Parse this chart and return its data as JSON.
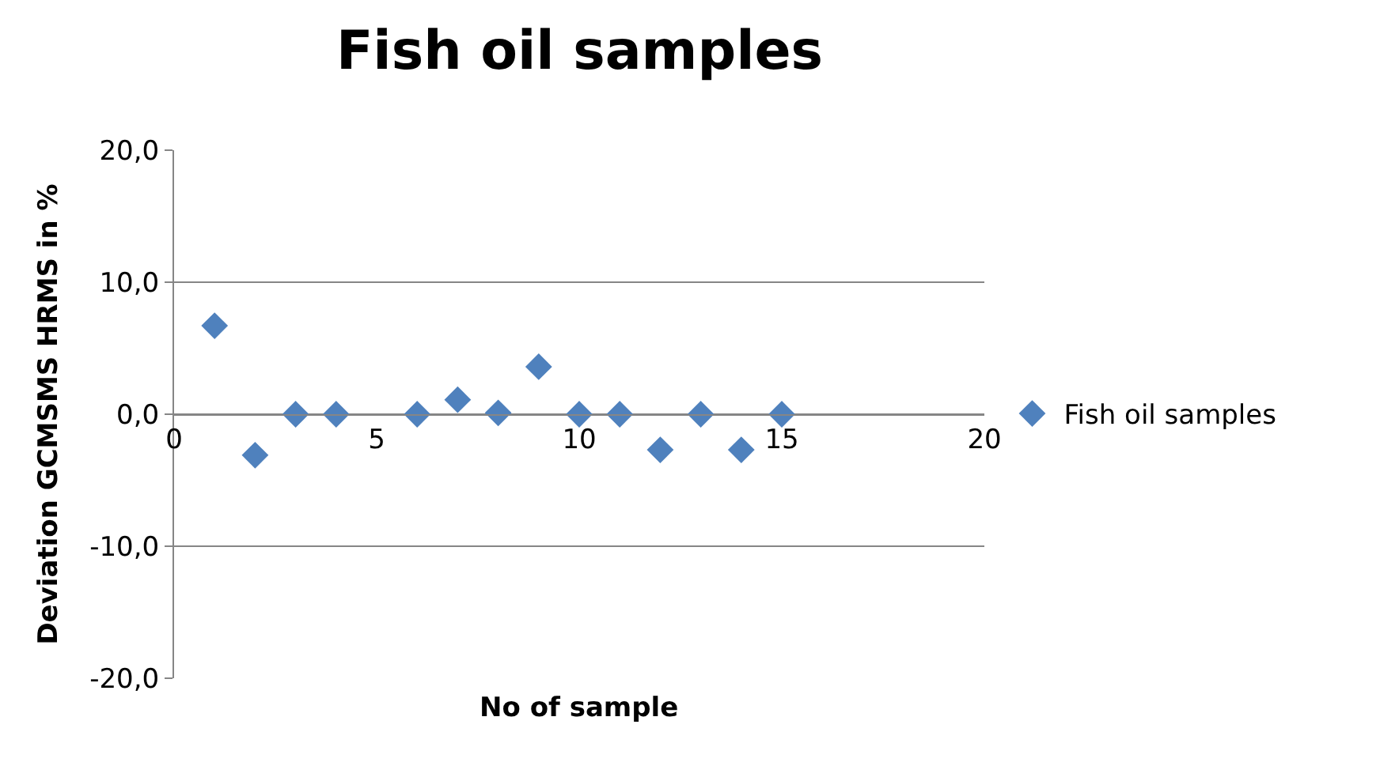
{
  "chart_data": {
    "type": "scatter",
    "title": "Fish oil samples",
    "xlabel": "No of sample",
    "ylabel": "Deviation GCMSMS HRMS in %",
    "x": [
      1,
      2,
      3,
      4,
      6,
      7,
      8,
      9,
      10,
      11,
      12,
      13,
      14,
      15
    ],
    "series": [
      {
        "name": "Fish oil samples",
        "color": "#4f81bd",
        "values": [
          6.7,
          -3.1,
          0,
          0,
          0,
          1.1,
          0.1,
          3.6,
          0,
          0,
          -2.7,
          0,
          -2.7,
          0
        ]
      }
    ],
    "xlim": [
      0,
      20
    ],
    "xticks": [
      0,
      5,
      10,
      15,
      20
    ],
    "ylim": [
      -20,
      20
    ],
    "yticks": [
      {
        "value": -20,
        "label": "-20,0"
      },
      {
        "value": -10,
        "label": "-10,0"
      },
      {
        "value": 0,
        "label": "0,0"
      },
      {
        "value": 10,
        "label": "10,0"
      },
      {
        "value": 20,
        "label": "20,0"
      }
    ],
    "grid": "y",
    "legend": "right",
    "marker": "diamond"
  }
}
